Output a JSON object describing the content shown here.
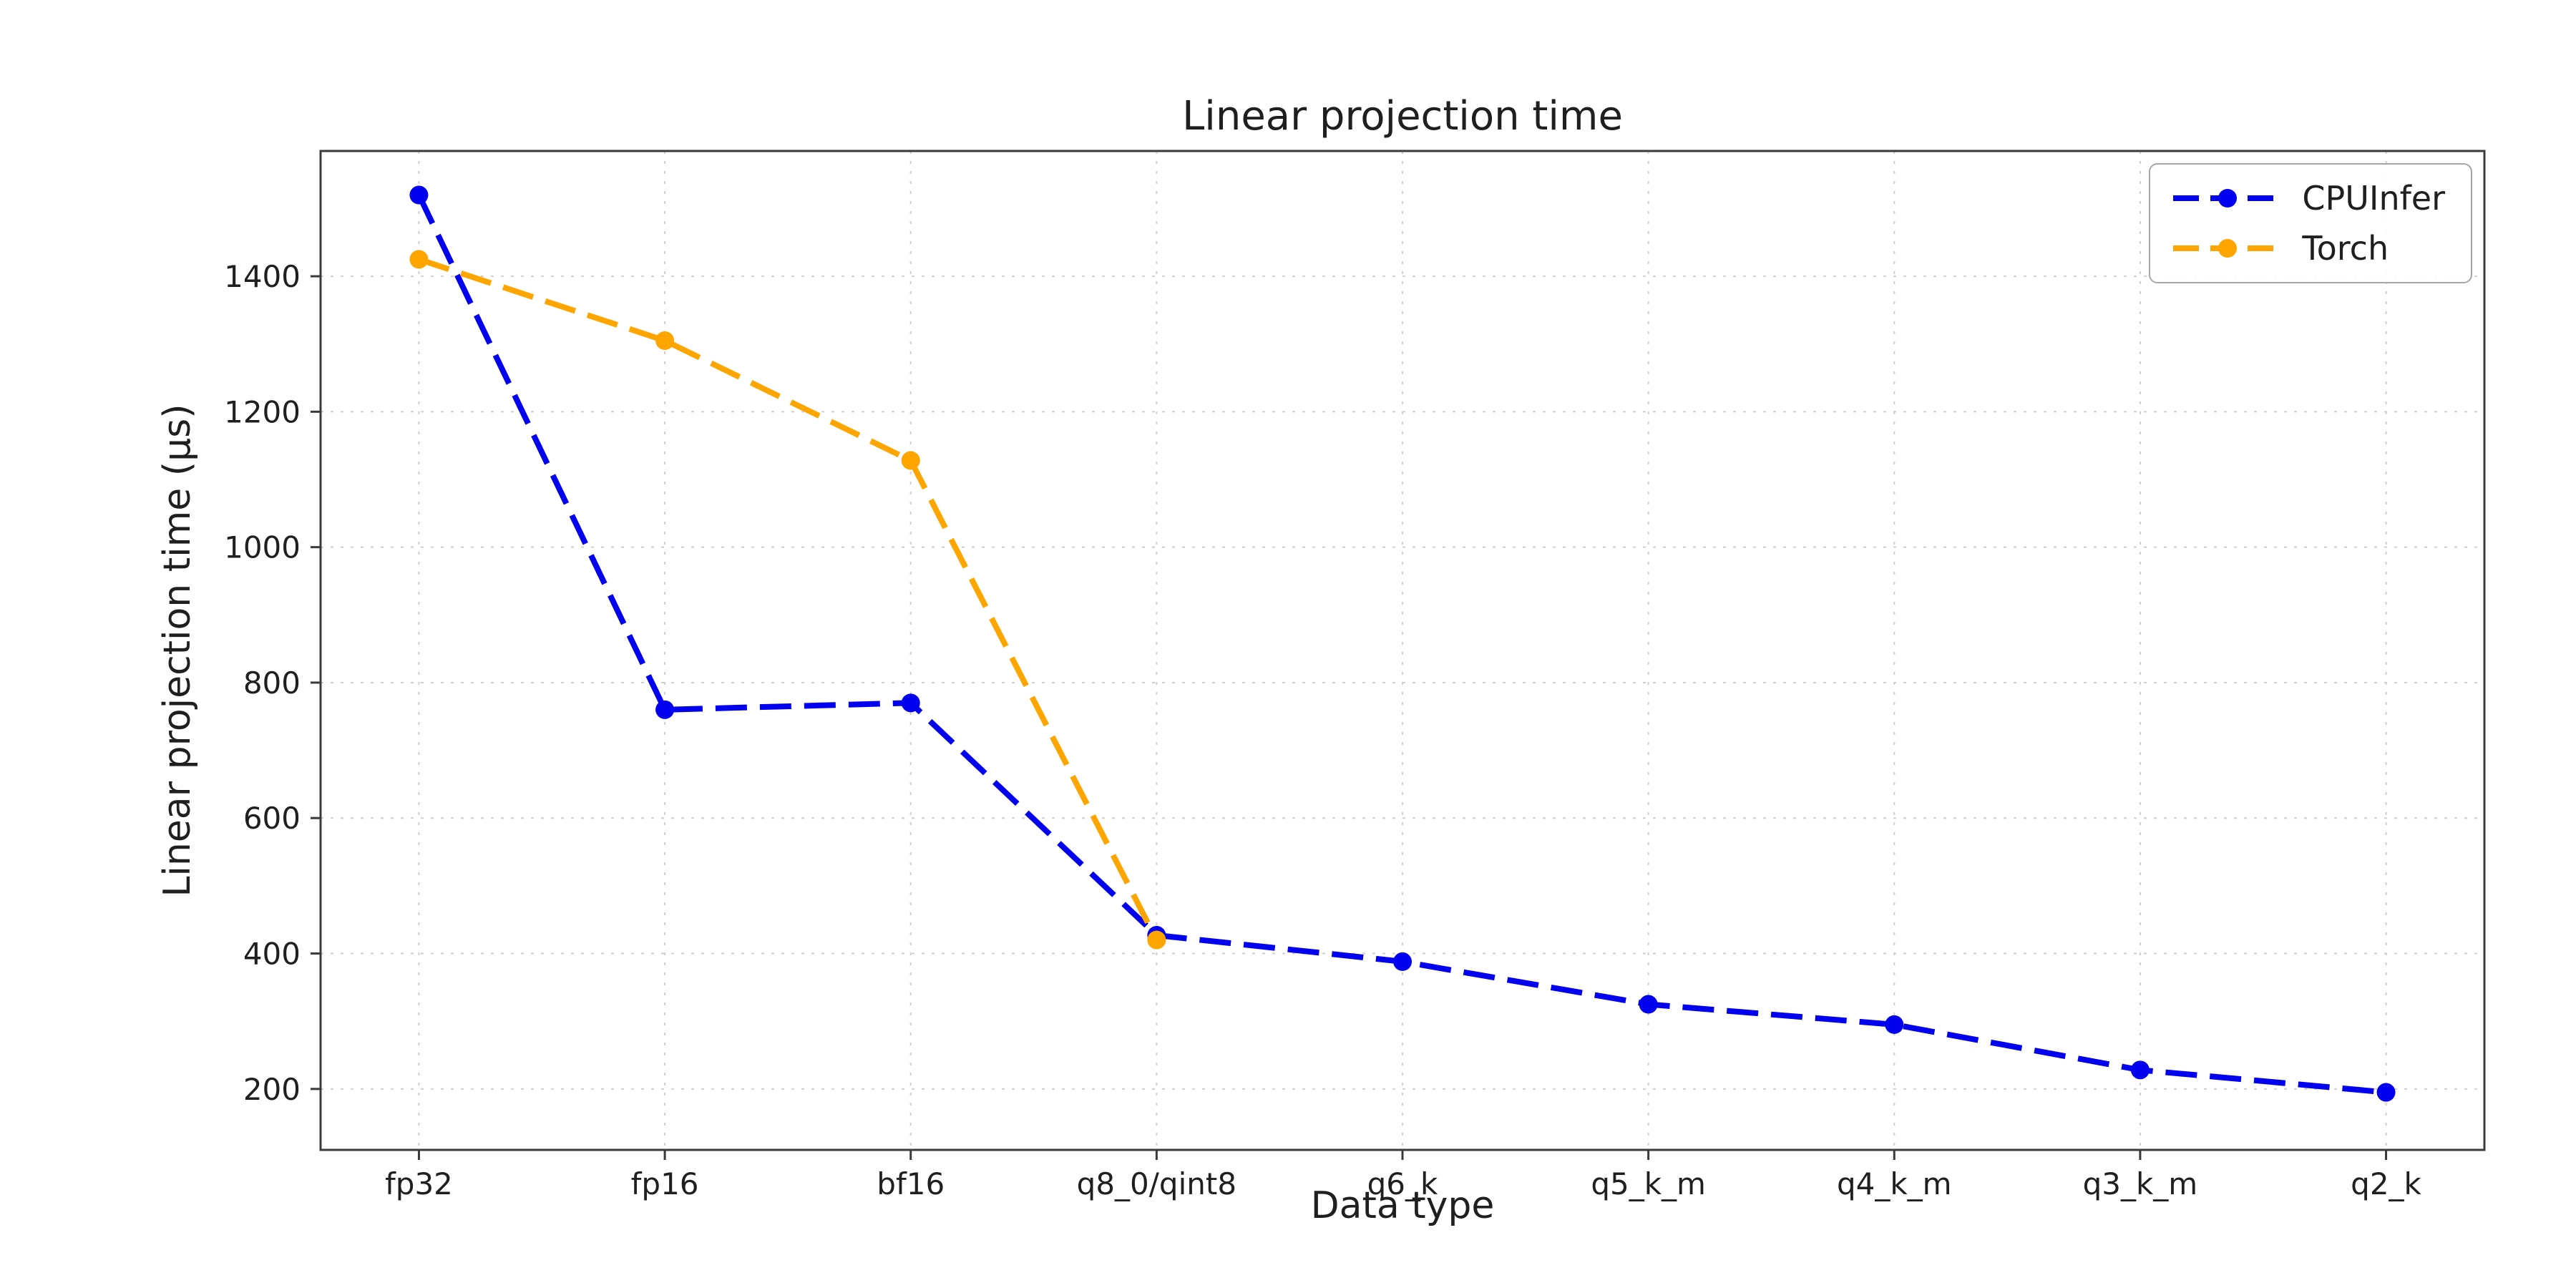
{
  "chart_data": {
    "type": "line",
    "title": "Linear projection time",
    "xlabel": "Data type",
    "ylabel": "Linear projection time (µs)",
    "categories": [
      "fp32",
      "fp16",
      "bf16",
      "q8_0/qint8",
      "q6_k",
      "q5_k_m",
      "q4_k_m",
      "q3_k_m",
      "q2_k"
    ],
    "series": [
      {
        "name": "CPUInfer",
        "color": "#0000ee",
        "values": [
          1520,
          760,
          770,
          427,
          388,
          325,
          295,
          228,
          195
        ]
      },
      {
        "name": "Torch",
        "color": "#ffa500",
        "values": [
          1425,
          1305,
          1128,
          420,
          null,
          null,
          null,
          null,
          null
        ]
      }
    ],
    "yticks": [
      200,
      400,
      600,
      800,
      1000,
      1200,
      1400
    ],
    "ylim": [
      110,
      1585
    ],
    "xlim": [
      -0.4,
      8.4
    ],
    "grid": true,
    "grid_color": "#cfcfcf",
    "legend_position": "upper right",
    "line_style": "dashed",
    "marker": "circle",
    "text_color": "#1f1f1f",
    "spine_color": "#3a3a3a"
  }
}
